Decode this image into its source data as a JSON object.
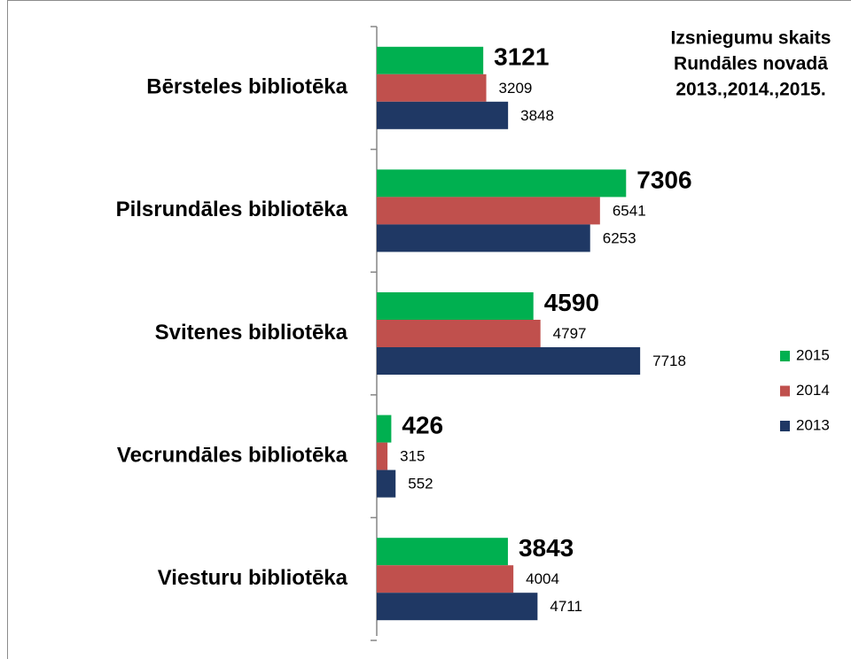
{
  "chart_data": {
    "type": "hbar",
    "title": [
      "Izsniegumu skaits",
      "Rundāles novadā",
      "2013.,2014.,2015."
    ],
    "categories": [
      "Bērsteles bibliotēka",
      "Pilsrundāles bibliotēka",
      "Svitenes bibliotēka",
      "Vecrundāles bibliotēka",
      "Viesturu bibliotēka"
    ],
    "series": [
      {
        "name": "2015",
        "color": "#00b050",
        "values": [
          3121,
          7306,
          4590,
          426,
          3843
        ]
      },
      {
        "name": "2014",
        "color": "#c0504d",
        "values": [
          3209,
          6541,
          4797,
          315,
          4004
        ]
      },
      {
        "name": "2013",
        "color": "#1f3864",
        "values": [
          3848,
          6253,
          7718,
          552,
          4711
        ]
      }
    ],
    "legend": "right"
  }
}
